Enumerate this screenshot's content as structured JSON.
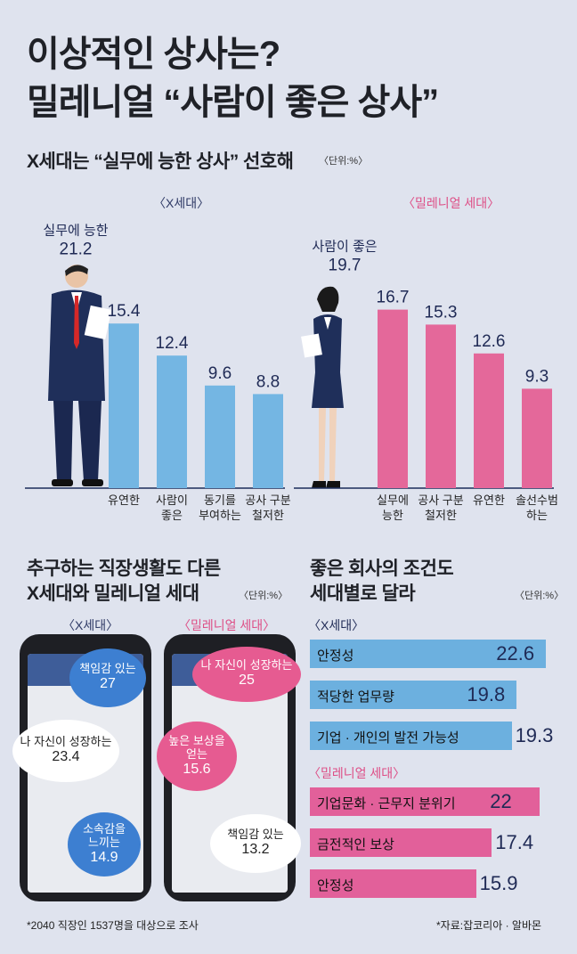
{
  "headline": {
    "line1": "이상적인 상사는?",
    "line2": "밀레니얼 “사람이 좋은 상사”"
  },
  "section1": {
    "title": "X세대는 “실무에 능한 상사” 선호해",
    "unit": "〈단위:%〉"
  },
  "section2": {
    "title_line1": "추구하는 직장생활도 다른",
    "title_line2": "X세대와 밀레니얼 세대",
    "unit": "〈단위:%〉",
    "x_label": "〈X세대〉",
    "m_label": "〈밀레니얼 세대〉"
  },
  "section3": {
    "title_line1": "좋은 회사의 조건도",
    "title_line2": "세대별로 달라",
    "unit": "〈단위:%〉"
  },
  "footnote_left": "*2040 직장인 1537명을 대상으로 조사",
  "footnote_right": "*자료:잡코리아 · 알바몬",
  "colors": {
    "blue_bar": "#74b6e3",
    "pink_bar": "#e4689a",
    "hbar_blue": "#6cb0df",
    "hbar_pink": "#e2609a",
    "navy_text": "#1f2a55"
  },
  "chart_data": [
    {
      "type": "bar",
      "group_label": "〈X세대〉",
      "categories": [
        "실무에 능한",
        "유연한",
        "사람이 좋은",
        "동기를 부여하는",
        "공사 구분 철저한"
      ],
      "tick_labels": [
        [
          "실무에 능한"
        ],
        [
          "유연한"
        ],
        [
          "사람이",
          "좋은"
        ],
        [
          "동기를",
          "부여하는"
        ],
        [
          "공사 구분",
          "철저한"
        ]
      ],
      "values": [
        21.2,
        15.4,
        12.4,
        9.6,
        8.8
      ],
      "value_labels": [
        "21.2",
        "15.4",
        "12.4",
        "9.6",
        "8.8"
      ],
      "ylim": [
        0,
        25
      ]
    },
    {
      "type": "bar",
      "group_label": "〈밀레니얼 세대〉",
      "categories": [
        "사람이 좋은",
        "실무에 능한",
        "공사 구분 철저한",
        "유연한",
        "솔선수범 하는"
      ],
      "tick_labels": [
        [
          "사람이 좋은"
        ],
        [
          "실무에",
          "능한"
        ],
        [
          "공사 구분",
          "철저한"
        ],
        [
          "유연한"
        ],
        [
          "솔선수범",
          "하는"
        ]
      ],
      "values": [
        19.7,
        16.7,
        15.3,
        12.6,
        9.3
      ],
      "value_labels": [
        "19.7",
        "16.7",
        "15.3",
        "12.6",
        "9.3"
      ],
      "ylim": [
        0,
        25
      ]
    },
    {
      "type": "bubble",
      "group_label": "〈X세대〉",
      "items": [
        {
          "label": "책임감 있는",
          "value": 27,
          "value_label": "27"
        },
        {
          "label": "나 자신이 성장하는",
          "value": 23.4,
          "value_label": "23.4"
        },
        {
          "label": "소속감을 느끼는",
          "label_lines": [
            "소속감을",
            "느끼는"
          ],
          "value": 14.9,
          "value_label": "14.9"
        }
      ]
    },
    {
      "type": "bubble",
      "group_label": "〈밀레니얼 세대〉",
      "items": [
        {
          "label": "나 자신이 성장하는",
          "value": 25,
          "value_label": "25"
        },
        {
          "label": "높은 보상을 얻는",
          "label_lines": [
            "높은 보상을",
            "얻는"
          ],
          "value": 15.6,
          "value_label": "15.6"
        },
        {
          "label": "책임감 있는",
          "value": 13.2,
          "value_label": "13.2"
        }
      ]
    },
    {
      "type": "bar",
      "orientation": "horizontal",
      "group_label": "〈X세대〉",
      "categories": [
        "안정성",
        "적당한 업무량",
        "기업 · 개인의 발전 가능성"
      ],
      "values": [
        22.6,
        19.8,
        19.3
      ],
      "value_labels": [
        "22.6",
        "19.8",
        "19.3"
      ]
    },
    {
      "type": "bar",
      "orientation": "horizontal",
      "group_label": "〈밀레니얼 세대〉",
      "categories": [
        "기업문화 · 근무지 분위기",
        "금전적인 보상",
        "안정성"
      ],
      "values": [
        22,
        17.4,
        15.9
      ],
      "value_labels": [
        "22",
        "17.4",
        "15.9"
      ]
    }
  ]
}
